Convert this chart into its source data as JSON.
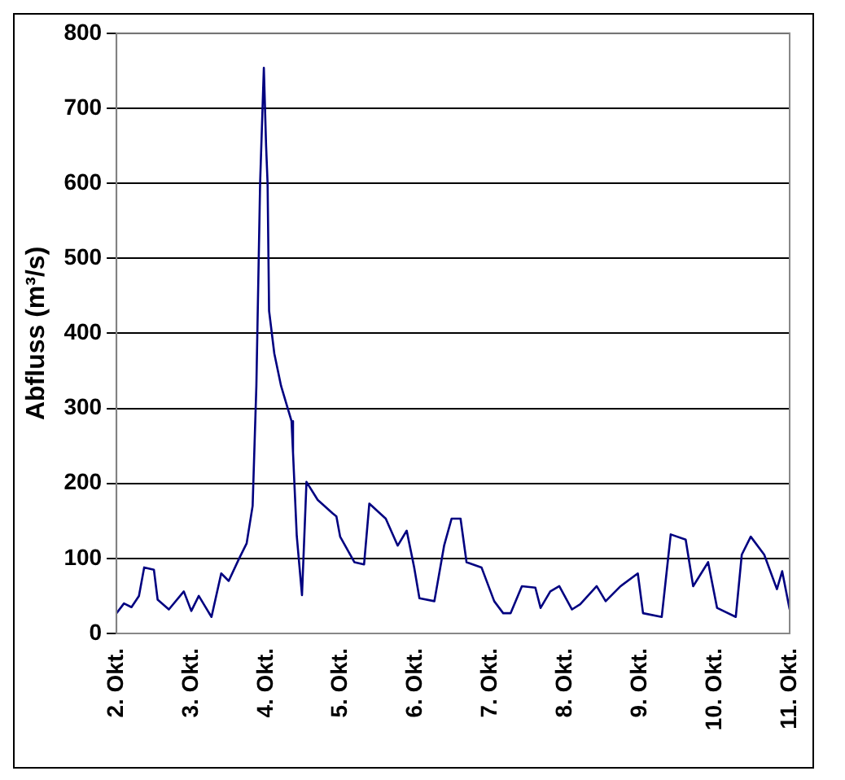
{
  "chart_data": {
    "type": "line",
    "ylabel": "Abfluss (m³/s)",
    "xlim": [
      2,
      11
    ],
    "xticks": [
      {
        "value": 2,
        "label": "2. Okt."
      },
      {
        "value": 3,
        "label": "3. Okt."
      },
      {
        "value": 4,
        "label": "4. Okt."
      },
      {
        "value": 5,
        "label": "5. Okt."
      },
      {
        "value": 6,
        "label": "6. Okt."
      },
      {
        "value": 7,
        "label": "7. Okt."
      },
      {
        "value": 8,
        "label": "8. Okt."
      },
      {
        "value": 9,
        "label": "9. Okt."
      },
      {
        "value": 10,
        "label": "10. Okt."
      },
      {
        "value": 11,
        "label": "11. Okt."
      }
    ],
    "ylim": [
      0,
      800
    ],
    "yticks": [
      0,
      100,
      200,
      300,
      400,
      500,
      600,
      700,
      800
    ],
    "grid": "y",
    "marker": "none",
    "line_style": "solid",
    "series": [
      {
        "color": "#000080",
        "x": [
          2.0,
          2.1,
          2.2,
          2.3,
          2.37,
          2.5,
          2.55,
          2.7,
          2.9,
          3.0,
          3.1,
          3.27,
          3.4,
          3.5,
          3.64,
          3.74,
          3.82,
          3.87,
          3.92,
          3.97,
          4.0,
          4.02,
          4.04,
          4.11,
          4.2,
          4.34,
          4.36,
          4.41,
          4.48,
          4.54,
          4.69,
          4.89,
          4.94,
          4.99,
          5.18,
          5.31,
          5.38,
          5.6,
          5.76,
          5.88,
          5.98,
          6.05,
          6.25,
          6.38,
          6.48,
          6.6,
          6.68,
          6.88,
          7.05,
          7.17,
          7.27,
          7.42,
          7.6,
          7.67,
          7.8,
          7.92,
          8.09,
          8.2,
          8.42,
          8.54,
          8.74,
          8.97,
          9.04,
          9.29,
          9.41,
          9.61,
          9.71,
          9.91,
          10.03,
          10.28,
          10.36,
          10.48,
          10.66,
          10.83,
          10.9,
          11.0
        ],
        "values": [
          27,
          40,
          35,
          50,
          88,
          85,
          45,
          32,
          56,
          30,
          50,
          22,
          80,
          70,
          100,
          120,
          170,
          330,
          600,
          754,
          650,
          600,
          430,
          373,
          330,
          283,
          241,
          130,
          51,
          202,
          178,
          160,
          156,
          129,
          95,
          92,
          173,
          153,
          117,
          137,
          88,
          47,
          43,
          117,
          153,
          153,
          95,
          88,
          43,
          27,
          27,
          63,
          61,
          34,
          56,
          63,
          32,
          39,
          63,
          43,
          63,
          80,
          27,
          22,
          132,
          125,
          63,
          95,
          34,
          22,
          105,
          129,
          105,
          59,
          83,
          32
        ]
      }
    ]
  }
}
